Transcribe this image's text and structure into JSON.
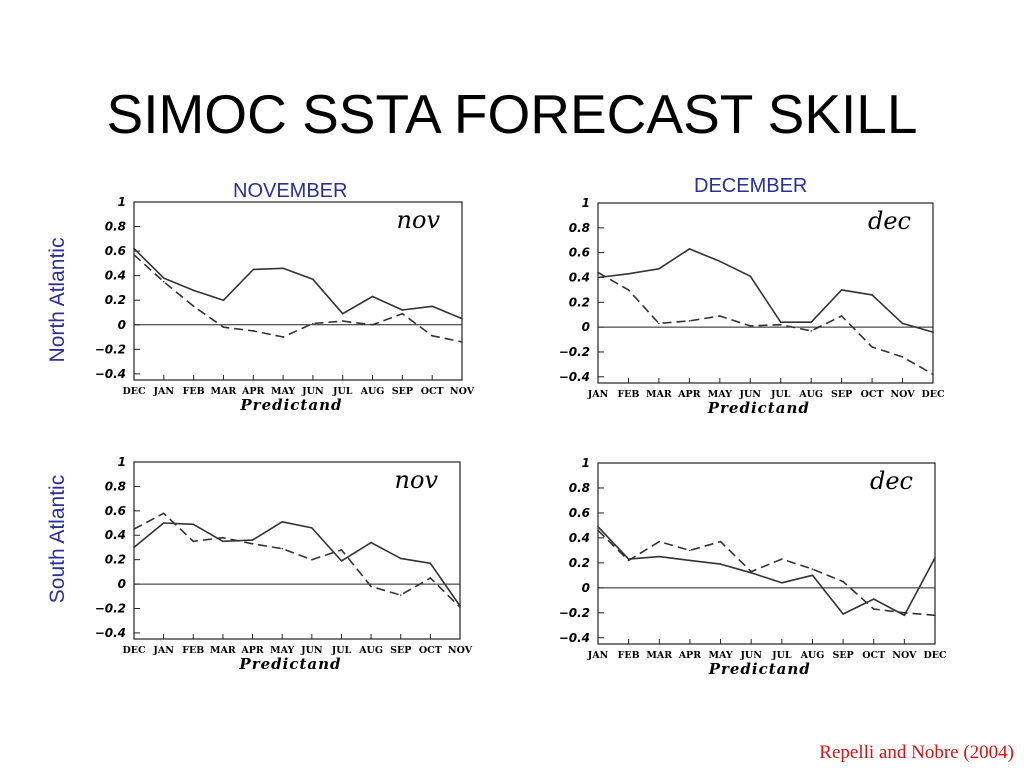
{
  "title": "SIMOC SSTA FORECAST SKILL",
  "columns": {
    "left": "NOVEMBER",
    "right": "DECEMBER"
  },
  "rows": {
    "top": "North Atlantic",
    "bottom": "South Atlantic"
  },
  "citation": "Repelli and Nobre (2004)",
  "colors": {
    "label_blue": "#2b2f9c",
    "citation_red": "#d21414",
    "lines": "#333333"
  },
  "chart_data": [
    {
      "type": "line",
      "inset_label": "nov",
      "xlabel": "Predictand",
      "ylabel": "",
      "categories": [
        "DEC",
        "JAN",
        "FEB",
        "MAR",
        "APR",
        "MAY",
        "JUN",
        "JUL",
        "AUG",
        "SEP",
        "OCT",
        "NOV"
      ],
      "ylim": [
        -0.45,
        1.0
      ],
      "yticks": [
        "1",
        "0.8",
        "0.6",
        "0.4",
        "0.2",
        "0",
        "−0.2",
        "−0.4"
      ],
      "series": [
        {
          "style": "solid",
          "values": [
            0.62,
            0.38,
            0.28,
            0.2,
            0.45,
            0.46,
            0.37,
            0.09,
            0.23,
            0.12,
            0.15,
            0.05
          ]
        },
        {
          "style": "dashed",
          "values": [
            0.57,
            0.35,
            0.15,
            -0.02,
            -0.05,
            -0.1,
            0.01,
            0.03,
            0.0,
            0.09,
            -0.09,
            -0.14
          ]
        }
      ]
    },
    {
      "type": "line",
      "inset_label": "dec",
      "xlabel": "Predictand",
      "ylabel": "",
      "categories": [
        "JAN",
        "FEB",
        "MAR",
        "APR",
        "MAY",
        "JUN",
        "JUL",
        "AUG",
        "SEP",
        "OCT",
        "NOV",
        "DEC"
      ],
      "ylim": [
        -0.45,
        1.0
      ],
      "yticks": [
        "1",
        "0.8",
        "0.6",
        "0.4",
        "0.2",
        "0",
        "−0.2",
        "−0.4"
      ],
      "series": [
        {
          "style": "solid",
          "values": [
            0.4,
            0.43,
            0.47,
            0.63,
            0.53,
            0.41,
            0.04,
            0.04,
            0.3,
            0.26,
            0.03,
            -0.04
          ]
        },
        {
          "style": "dashed",
          "values": [
            0.44,
            0.3,
            0.03,
            0.05,
            0.09,
            0.01,
            0.02,
            -0.03,
            0.09,
            -0.16,
            -0.24,
            -0.38
          ]
        }
      ]
    },
    {
      "type": "line",
      "inset_label": "nov",
      "xlabel": "Predictand",
      "ylabel": "",
      "categories": [
        "DEC",
        "JAN",
        "FEB",
        "MAR",
        "APR",
        "MAY",
        "JUN",
        "JUL",
        "AUG",
        "SEP",
        "OCT",
        "NOV"
      ],
      "ylim": [
        -0.45,
        1.0
      ],
      "yticks": [
        "1",
        "0.8",
        "0.6",
        "0.4",
        "0.2",
        "0",
        "−0.2",
        "−0.4"
      ],
      "series": [
        {
          "style": "solid",
          "values": [
            0.3,
            0.5,
            0.49,
            0.35,
            0.36,
            0.51,
            0.46,
            0.19,
            0.34,
            0.21,
            0.17,
            -0.18
          ]
        },
        {
          "style": "dashed",
          "values": [
            0.45,
            0.58,
            0.35,
            0.38,
            0.33,
            0.29,
            0.2,
            0.28,
            -0.02,
            -0.09,
            0.05,
            -0.19
          ]
        }
      ]
    },
    {
      "type": "line",
      "inset_label": "dec",
      "xlabel": "Predictand",
      "ylabel": "",
      "categories": [
        "JAN",
        "FEB",
        "MAR",
        "APR",
        "MAY",
        "JUN",
        "JUL",
        "AUG",
        "SEP",
        "OCT",
        "NOV",
        "DEC"
      ],
      "ylim": [
        -0.45,
        1.0
      ],
      "yticks": [
        "1",
        "0.8",
        "0.6",
        "0.4",
        "0.2",
        "0",
        "−0.2",
        "−0.4"
      ],
      "series": [
        {
          "style": "solid",
          "values": [
            0.49,
            0.23,
            0.25,
            0.22,
            0.19,
            0.12,
            0.04,
            0.1,
            -0.21,
            -0.09,
            -0.22,
            0.24
          ]
        },
        {
          "style": "dashed",
          "values": [
            0.46,
            0.22,
            0.37,
            0.3,
            0.37,
            0.13,
            0.23,
            0.15,
            0.05,
            -0.17,
            -0.2,
            -0.22
          ]
        }
      ]
    }
  ]
}
